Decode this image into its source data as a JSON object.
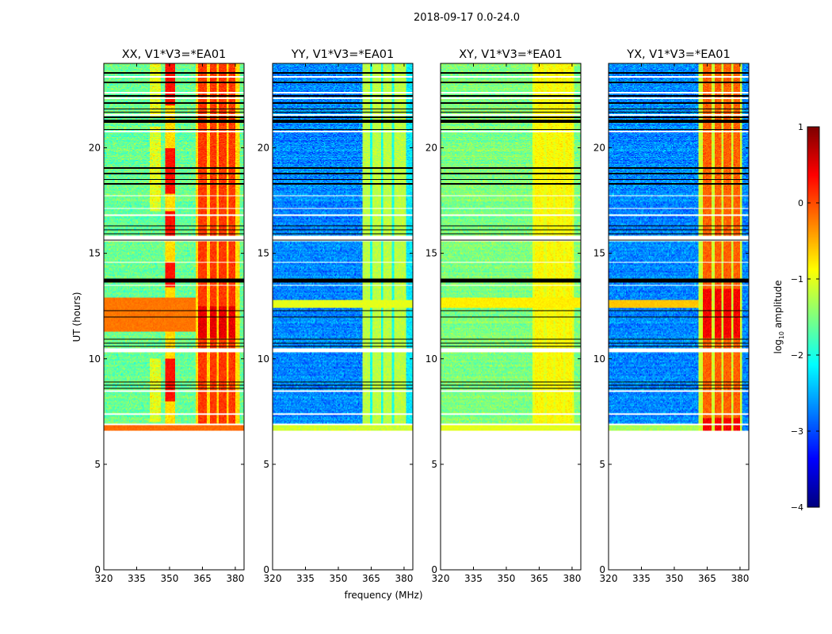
{
  "chart_data": {
    "type": "heatmap",
    "suptitle": "2018-09-17 0.0-24.0",
    "xlabel": "frequency (MHz)",
    "ylabel": "UT (hours)",
    "xlim": [
      320,
      384
    ],
    "ylim": [
      0,
      24
    ],
    "xticks": [
      320,
      335,
      350,
      365,
      380
    ],
    "yticks": [
      0,
      5,
      10,
      15,
      20
    ],
    "data_time_range_hours": [
      6.6,
      24.0
    ],
    "panels": [
      {
        "title": "XX, V1*V3=*EA01",
        "base_log_amp": -1.6,
        "rfi_band_mhz": [
          362,
          382
        ],
        "rfi_log_amp": 0.2
      },
      {
        "title": "YY, V1*V3=*EA01",
        "base_log_amp": -2.7,
        "rfi_band_mhz": [
          361,
          381
        ],
        "rfi_log_amp": -1.3
      },
      {
        "title": "XY, V1*V3=*EA01",
        "base_log_amp": -1.6,
        "rfi_band_mhz": [
          362,
          381
        ],
        "rfi_log_amp": -1.0
      },
      {
        "title": "YX, V1*V3=*EA01",
        "base_log_amp": -2.7,
        "rfi_band_mhz": [
          361,
          381
        ],
        "rfi_log_amp": 0.0
      }
    ],
    "flagged_black_hours": [
      23.55,
      23.09,
      22.46,
      22.12,
      21.85,
      21.7,
      21.44,
      21.25,
      20.87,
      19.04,
      18.78,
      18.51,
      18.29,
      16.3,
      16.11,
      15.92,
      15.62,
      13.71,
      12.28,
      11.98,
      10.93,
      10.74,
      10.59,
      8.9,
      8.75,
      8.6
    ],
    "flagged_white_hours": [
      23.36,
      22.61,
      22.34,
      21.55,
      20.79,
      17.72,
      17.12,
      16.79,
      15.7,
      14.57,
      13.48,
      10.4,
      8.49,
      7.4,
      6.91
    ],
    "colorbar": {
      "label": "log10 amplitude",
      "label_main": "log",
      "label_sub": "10",
      "label_rest": " amplitude",
      "colormap": "jet",
      "range": [
        -4,
        1
      ],
      "ticks": [
        "1",
        "0",
        "−1",
        "−2",
        "−3",
        "−4"
      ]
    }
  }
}
